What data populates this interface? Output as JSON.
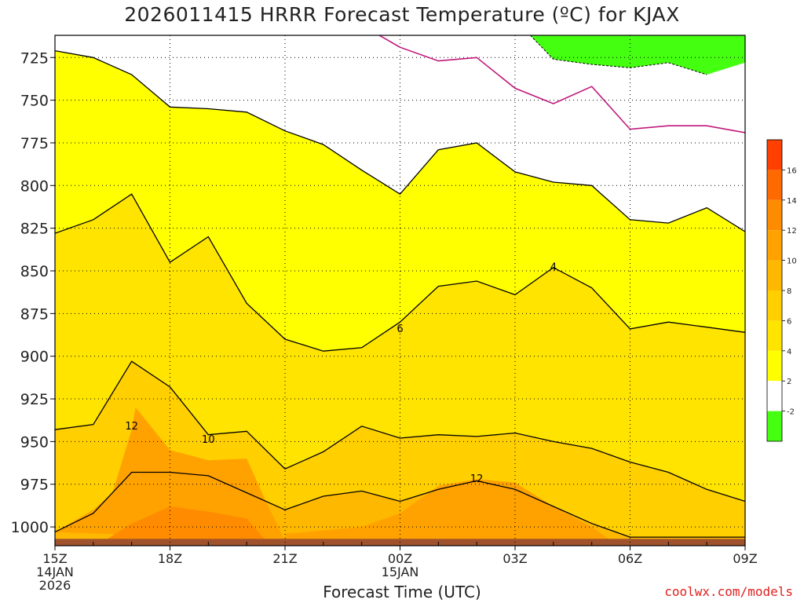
{
  "title": "2026011415 HRRR Forecast Temperature (ºC) for KJAX",
  "xlabel": "Forecast Time (UTC)",
  "credit": "coolwx.com/models",
  "chart_data": {
    "type": "contour",
    "title": "2026011415 HRRR Forecast Temperature (ºC) for KJAX",
    "xlabel": "Forecast Time (UTC)",
    "ylabel": "",
    "x_ticks": [
      {
        "hour": 0,
        "label": "15Z",
        "sub": [
          "14JAN",
          "2026"
        ]
      },
      {
        "hour": 3,
        "label": "18Z",
        "sub": []
      },
      {
        "hour": 6,
        "label": "21Z",
        "sub": []
      },
      {
        "hour": 9,
        "label": "00Z",
        "sub": [
          "15JAN"
        ]
      },
      {
        "hour": 12,
        "label": "03Z",
        "sub": []
      },
      {
        "hour": 15,
        "label": "06Z",
        "sub": []
      },
      {
        "hour": 18,
        "label": "09Z",
        "sub": []
      }
    ],
    "y_ticks": [
      725,
      750,
      775,
      800,
      825,
      850,
      875,
      900,
      925,
      950,
      975,
      1000
    ],
    "ylim": [
      1011,
      712
    ],
    "xlim": [
      0,
      18
    ],
    "grid": true,
    "colorbar": {
      "labels": [
        "16",
        "14",
        "12",
        "10",
        "8",
        "6",
        "4",
        "2",
        "-2"
      ],
      "colors": [
        "#ff4000",
        "#ff6a00",
        "#ff8c00",
        "#ffa200",
        "#ffb800",
        "#ffcf00",
        "#ffe400",
        "#ffff00",
        "#ffffff",
        "#44ff10"
      ]
    },
    "contour_labels": [
      {
        "text": "12",
        "x": 2.0,
        "y": 941
      },
      {
        "text": "10",
        "x": 4.0,
        "y": 949
      },
      {
        "text": "6",
        "x": 9.0,
        "y": 884
      },
      {
        "text": "4",
        "x": 13.0,
        "y": 848
      },
      {
        "text": "12",
        "x": 11.0,
        "y": 972
      }
    ],
    "isotherms": [
      {
        "level": 2,
        "points": [
          [
            0,
            721
          ],
          [
            1,
            725
          ],
          [
            2,
            735
          ],
          [
            3,
            754
          ],
          [
            4,
            755
          ],
          [
            5,
            757
          ],
          [
            6,
            768
          ],
          [
            7,
            776
          ],
          [
            8,
            791
          ],
          [
            9,
            805
          ],
          [
            10,
            779
          ],
          [
            11,
            775
          ],
          [
            12,
            792
          ],
          [
            13,
            798
          ],
          [
            14,
            800
          ],
          [
            15,
            820
          ],
          [
            16,
            822
          ],
          [
            17,
            813
          ],
          [
            18,
            827
          ]
        ]
      },
      {
        "level": 4,
        "points": [
          [
            0,
            828
          ],
          [
            1,
            820
          ],
          [
            2,
            805
          ],
          [
            3,
            845
          ],
          [
            4,
            830
          ],
          [
            5,
            869
          ],
          [
            6,
            890
          ],
          [
            7,
            897
          ],
          [
            8,
            895
          ],
          [
            9,
            880
          ],
          [
            10,
            859
          ],
          [
            11,
            856
          ],
          [
            12,
            864
          ],
          [
            13,
            848
          ],
          [
            14,
            860
          ],
          [
            15,
            884
          ],
          [
            16,
            880
          ],
          [
            17,
            883
          ],
          [
            18,
            886
          ]
        ]
      },
      {
        "level": 6,
        "points": [
          [
            0,
            943
          ],
          [
            1,
            940
          ],
          [
            2,
            903
          ],
          [
            3,
            918
          ],
          [
            4,
            946
          ],
          [
            5,
            944
          ],
          [
            6,
            966
          ],
          [
            7,
            956
          ],
          [
            8,
            941
          ],
          [
            9,
            948
          ],
          [
            10,
            946
          ],
          [
            11,
            947
          ],
          [
            12,
            945
          ],
          [
            13,
            950
          ],
          [
            14,
            954
          ],
          [
            15,
            962
          ],
          [
            16,
            968
          ],
          [
            17,
            978
          ],
          [
            18,
            985
          ]
        ]
      },
      {
        "level": 8,
        "points": [
          [
            0,
            1003
          ],
          [
            1,
            992
          ],
          [
            2,
            968
          ],
          [
            3,
            968
          ],
          [
            4,
            970
          ],
          [
            5,
            980
          ],
          [
            6,
            990
          ],
          [
            7,
            982
          ],
          [
            8,
            979
          ],
          [
            9,
            985
          ],
          [
            10,
            978
          ],
          [
            11,
            973
          ],
          [
            12,
            978
          ],
          [
            13,
            988
          ],
          [
            14,
            998
          ],
          [
            15,
            1006
          ],
          [
            16,
            1006
          ],
          [
            17,
            1006
          ],
          [
            18,
            1006
          ]
        ]
      }
    ],
    "freezing_line": {
      "level": 0,
      "points": [
        [
          8,
          706
        ],
        [
          9,
          719
        ],
        [
          10,
          727
        ],
        [
          11,
          725
        ],
        [
          12,
          743
        ],
        [
          13,
          752
        ],
        [
          14,
          742
        ],
        [
          15,
          767
        ],
        [
          16,
          765
        ],
        [
          17,
          765
        ],
        [
          18,
          769
        ]
      ]
    },
    "cold_region": {
      "level": -2,
      "points": [
        [
          12.4,
          712
        ],
        [
          13,
          726
        ],
        [
          14,
          729
        ],
        [
          15,
          731
        ],
        [
          16,
          728
        ],
        [
          17,
          735
        ],
        [
          18,
          728
        ],
        [
          18,
          712
        ]
      ]
    },
    "ground": {
      "surface": 1007,
      "color": "#a0522d"
    }
  }
}
